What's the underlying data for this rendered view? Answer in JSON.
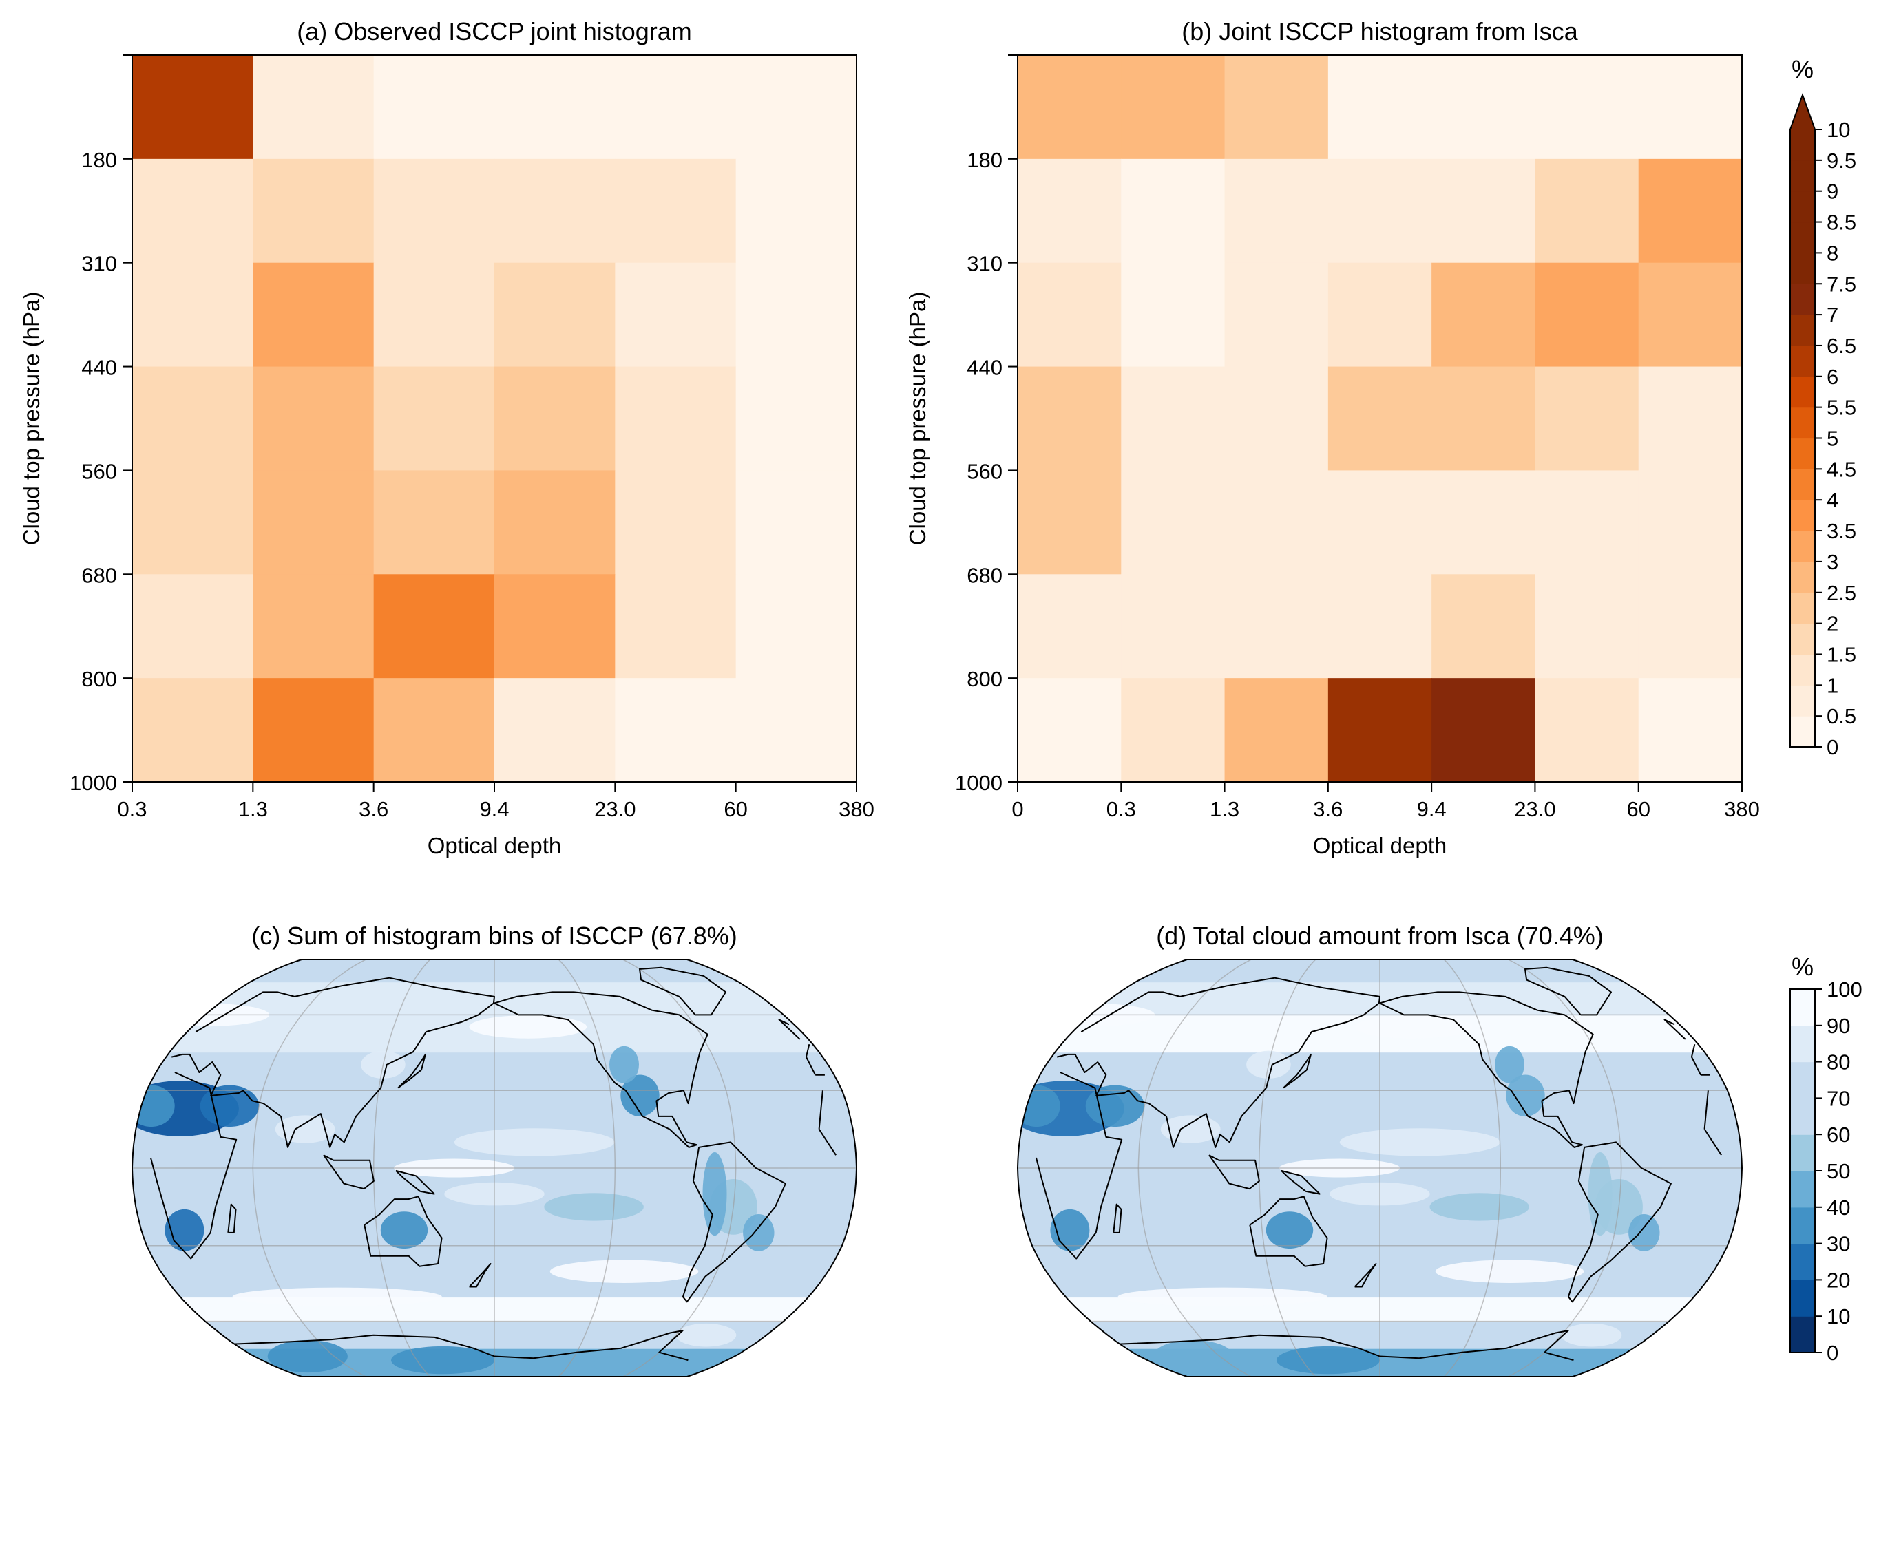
{
  "colorbars": {
    "histogram": {
      "unit_label": "%",
      "ticks": [
        "0",
        "0.5",
        "1",
        "1.5",
        "2",
        "2.5",
        "3",
        "3.5",
        "4",
        "4.5",
        "5",
        "5.5",
        "6",
        "6.5",
        "7",
        "7.5",
        "8",
        "8.5",
        "9",
        "9.5",
        "10"
      ],
      "extend": "max",
      "colors": [
        "#fff5eb",
        "#feeddc",
        "#fee6ce",
        "#fdd9b4",
        "#fdca99",
        "#fdb97d",
        "#fda660",
        "#fd9243",
        "#f5812c",
        "#ec6e17",
        "#e05b0a",
        "#d04801",
        "#b23b02",
        "#9a3203",
        "#86290a",
        "#7f2704",
        "#7f2704",
        "#7f2704",
        "#7f2704",
        "#7f2704"
      ],
      "extend_color": "#7f2704"
    },
    "cloud": {
      "unit_label": "%",
      "ticks": [
        "0",
        "10",
        "20",
        "30",
        "40",
        "50",
        "60",
        "70",
        "80",
        "90",
        "100"
      ],
      "colors": [
        "#08306b",
        "#08519c",
        "#2171b5",
        "#4292c6",
        "#6baed6",
        "#9ecae1",
        "#c6dbef",
        "#c6dbef",
        "#deebf7",
        "#f7fbff"
      ]
    }
  },
  "chart_data": [
    {
      "type": "heatmap",
      "title": "(a) Observed ISCCP joint histogram",
      "xlabel": "Optical depth",
      "ylabel": "Cloud top pressure (hPa)",
      "x_ticks": [
        "0.3",
        "1.3",
        "3.6",
        "9.4",
        "23.0",
        "60",
        "380"
      ],
      "y_ticks": [
        "180",
        "310",
        "440",
        "560",
        "680",
        "800",
        "1000"
      ],
      "rows_top_to_bottom": [
        "<180",
        "180-310",
        "310-440",
        "440-560",
        "560-680",
        "680-800",
        "800-1000"
      ],
      "values": [
        [
          6.0,
          0.8,
          0.4,
          0.4,
          0.4,
          0.4
        ],
        [
          1.2,
          1.8,
          1.0,
          1.2,
          1.2,
          0.4
        ],
        [
          1.2,
          3.0,
          1.0,
          1.7,
          0.5,
          0.4
        ],
        [
          1.7,
          2.5,
          1.7,
          2.0,
          1.2,
          0.4
        ],
        [
          1.7,
          2.5,
          2.2,
          2.5,
          1.2,
          0.4
        ],
        [
          1.0,
          2.5,
          4.3,
          3.0,
          1.2,
          0.4
        ],
        [
          1.5,
          4.3,
          2.7,
          0.8,
          0.4,
          0.4
        ]
      ],
      "vmin": 0,
      "vmax": 10
    },
    {
      "type": "heatmap",
      "title": "(b) Joint ISCCP histogram from Isca",
      "xlabel": "Optical depth",
      "ylabel": "Cloud top pressure (hPa)",
      "x_ticks": [
        "0",
        "0.3",
        "1.3",
        "3.6",
        "9.4",
        "23.0",
        "60",
        "380"
      ],
      "y_ticks": [
        "180",
        "310",
        "440",
        "560",
        "680",
        "800",
        "1000"
      ],
      "rows_top_to_bottom": [
        "<180",
        "180-310",
        "310-440",
        "440-560",
        "560-680",
        "680-800",
        "800-1000"
      ],
      "values": [
        [
          2.7,
          2.5,
          2.3,
          0.4,
          0.4,
          0.4,
          0.4
        ],
        [
          0.8,
          0.3,
          0.8,
          0.8,
          0.8,
          1.7,
          3.0
        ],
        [
          1.2,
          0.3,
          0.8,
          1.2,
          2.7,
          3.0,
          2.7
        ],
        [
          2.0,
          0.8,
          0.8,
          2.0,
          2.3,
          1.7,
          0.8
        ],
        [
          2.0,
          0.8,
          0.6,
          0.6,
          0.6,
          0.6,
          0.6
        ],
        [
          0.8,
          0.8,
          0.8,
          0.8,
          1.5,
          0.6,
          0.6
        ],
        [
          0.4,
          1.2,
          2.5,
          6.5,
          7.0,
          1.2,
          0.4
        ]
      ],
      "vmin": 0,
      "vmax": 10
    },
    {
      "type": "heatmap",
      "title": "(c) Sum of histogram bins of ISCCP (67.8%)",
      "projection": "global map (Robinson, centred on the Pacific)",
      "colorbar_range": [
        0,
        100
      ],
      "global_mean": "67.8%"
    },
    {
      "type": "heatmap",
      "title": "(d) Total cloud amount from Isca (70.4%)",
      "projection": "global map (Robinson, centred on the Pacific)",
      "colorbar_range": [
        0,
        100
      ],
      "global_mean": "70.4%"
    }
  ]
}
